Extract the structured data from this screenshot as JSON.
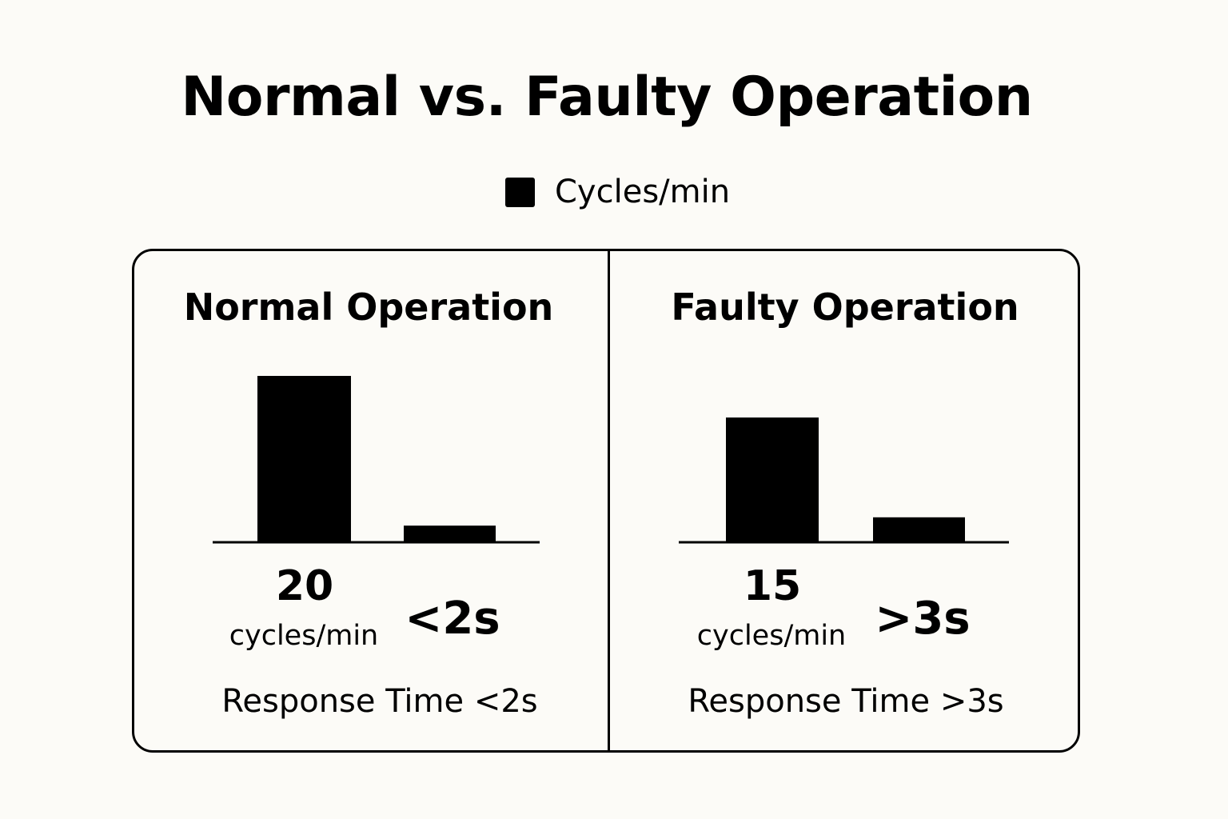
{
  "chart_data": {
    "type": "bar",
    "title": "Normal vs. Faulty Operation",
    "legend": {
      "label": "Cycles/min",
      "color": "#000000",
      "position": "top-center"
    },
    "panels": [
      {
        "title": "Normal Operation",
        "categories": [
          "20 cycles/min",
          "<2s"
        ],
        "values": [
          20,
          2
        ],
        "cycles_value": "20",
        "cycles_unit": "cycles/min",
        "response_value": "<2s",
        "caption": "Response Time <2s"
      },
      {
        "title": "Faulty Operation",
        "categories": [
          "15 cycles/min",
          ">3s"
        ],
        "values": [
          15,
          3
        ],
        "cycles_value": "15",
        "cycles_unit": "cycles/min",
        "response_value": ">3s",
        "caption": "Response Time >3s"
      }
    ],
    "ylim": [
      0,
      20
    ],
    "grid": false,
    "bar_color": "#000000"
  }
}
